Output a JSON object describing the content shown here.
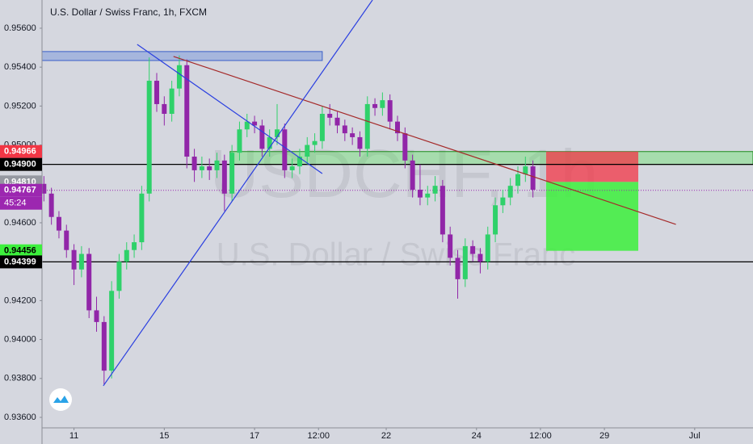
{
  "chart_data": {
    "type": "candlestick",
    "title": "U.S. Dollar / Swiss Franc, 1h, FXCM",
    "watermark_symbol": "USDCHF, 1h",
    "watermark_name": "U.S. Dollar / Swiss Franc",
    "up_color": "#2fd16a",
    "down_color": "#9126a8",
    "xlim": [
      0,
      378
    ],
    "ylim": [
      0.93546,
      0.95745
    ],
    "yticks": [
      {
        "value": 0.956,
        "label": "0.95600"
      },
      {
        "value": 0.954,
        "label": "0.95400"
      },
      {
        "value": 0.952,
        "label": "0.95200"
      },
      {
        "value": 0.95,
        "label": "0.95000"
      },
      {
        "value": 0.948,
        "label": "0.94800"
      },
      {
        "value": 0.946,
        "label": "0.94600"
      },
      {
        "value": 0.944,
        "label": "0.94400"
      },
      {
        "value": 0.942,
        "label": "0.94200"
      },
      {
        "value": 0.94,
        "label": "0.94000"
      },
      {
        "value": 0.938,
        "label": "0.93800"
      },
      {
        "value": 0.936,
        "label": "0.93600"
      }
    ],
    "xticks": [
      {
        "value": 17,
        "label": "11"
      },
      {
        "value": 65,
        "label": "15"
      },
      {
        "value": 113,
        "label": "17"
      },
      {
        "value": 147,
        "label": "12:00"
      },
      {
        "value": 183,
        "label": "22"
      },
      {
        "value": 231,
        "label": "24"
      },
      {
        "value": 265,
        "label": "12:00"
      },
      {
        "value": 299,
        "label": "29"
      },
      {
        "value": 347,
        "label": "Jul"
      }
    ],
    "x": [
      1,
      5,
      9,
      13,
      17,
      21,
      25,
      29,
      33,
      37,
      41,
      45,
      49,
      53,
      57,
      61,
      65,
      69,
      73,
      77,
      81,
      85,
      89,
      93,
      97,
      101,
      105,
      109,
      113,
      117,
      121,
      125,
      129,
      133,
      137,
      141,
      145,
      149,
      153,
      157,
      161,
      165,
      169,
      173,
      177,
      181,
      185,
      189,
      193,
      197,
      201,
      205,
      209,
      213,
      217,
      221,
      225,
      229,
      233,
      237,
      241,
      245,
      249,
      253,
      257,
      261
    ],
    "open": [
      0.948,
      0.9475,
      0.9463,
      0.9456,
      0.9446,
      0.9436,
      0.9444,
      0.9415,
      0.9409,
      0.9384,
      0.9425,
      0.944,
      0.9446,
      0.945,
      0.9475,
      0.9533,
      0.9521,
      0.9516,
      0.9529,
      0.9541,
      0.9494,
      0.9487,
      0.9489,
      0.9487,
      0.9492,
      0.9475,
      0.9496,
      0.9508,
      0.9512,
      0.951,
      0.9498,
      0.9504,
      0.9508,
      0.9487,
      0.9489,
      0.9494,
      0.95,
      0.9502,
      0.9516,
      0.9514,
      0.951,
      0.9506,
      0.9504,
      0.9498,
      0.9521,
      0.9519,
      0.9523,
      0.9512,
      0.9506,
      0.9492,
      0.9477,
      0.9473,
      0.9475,
      0.9479,
      0.9454,
      0.9442,
      0.9431,
      0.9448,
      0.9444,
      0.944,
      0.9454,
      0.9469,
      0.9473,
      0.9479,
      0.9485,
      0.9489
    ],
    "high": [
      0.9484,
      0.9478,
      0.9466,
      0.9459,
      0.9449,
      0.9448,
      0.9447,
      0.9422,
      0.9412,
      0.943,
      0.9444,
      0.945,
      0.9454,
      0.9479,
      0.9545,
      0.9537,
      0.9525,
      0.9533,
      0.9546,
      0.9544,
      0.9498,
      0.9494,
      0.9493,
      0.9496,
      0.9495,
      0.95,
      0.9512,
      0.9516,
      0.9515,
      0.9513,
      0.9508,
      0.9521,
      0.9511,
      0.9493,
      0.9498,
      0.9504,
      0.9506,
      0.952,
      0.9521,
      0.9517,
      0.9513,
      0.9509,
      0.9507,
      0.9525,
      0.9524,
      0.9527,
      0.9526,
      0.9515,
      0.9509,
      0.9495,
      0.949,
      0.9479,
      0.9484,
      0.9482,
      0.9458,
      0.9446,
      0.9452,
      0.9451,
      0.9447,
      0.9458,
      0.9473,
      0.9477,
      0.9483,
      0.9489,
      0.9494,
      0.9492
    ],
    "low": [
      0.9471,
      0.9459,
      0.9452,
      0.9442,
      0.9428,
      0.9432,
      0.9411,
      0.9404,
      0.9377,
      0.938,
      0.9421,
      0.9436,
      0.9442,
      0.9446,
      0.9471,
      0.9517,
      0.951,
      0.9512,
      0.9525,
      0.9488,
      0.9481,
      0.9483,
      0.9482,
      0.9483,
      0.9466,
      0.9471,
      0.9492,
      0.9504,
      0.9506,
      0.9494,
      0.9494,
      0.95,
      0.9483,
      0.9483,
      0.9485,
      0.949,
      0.9496,
      0.9498,
      0.951,
      0.9506,
      0.9502,
      0.95,
      0.9494,
      0.9494,
      0.9515,
      0.9515,
      0.9508,
      0.9502,
      0.9488,
      0.9473,
      0.9469,
      0.9469,
      0.9471,
      0.945,
      0.9438,
      0.9421,
      0.9427,
      0.944,
      0.9434,
      0.9436,
      0.945,
      0.9465,
      0.9469,
      0.9475,
      0.9481,
      0.9473
    ],
    "close": [
      0.9475,
      0.9463,
      0.9456,
      0.9446,
      0.9436,
      0.9444,
      0.9415,
      0.9409,
      0.9384,
      0.9425,
      0.944,
      0.9446,
      0.945,
      0.9475,
      0.9533,
      0.9521,
      0.9516,
      0.9529,
      0.9541,
      0.9494,
      0.9487,
      0.9489,
      0.9487,
      0.9492,
      0.9475,
      0.9496,
      0.9508,
      0.9512,
      0.951,
      0.9498,
      0.9504,
      0.9508,
      0.9487,
      0.9489,
      0.9494,
      0.95,
      0.9502,
      0.9516,
      0.9514,
      0.951,
      0.9506,
      0.9504,
      0.9498,
      0.9521,
      0.9519,
      0.9523,
      0.9512,
      0.9506,
      0.9492,
      0.9477,
      0.9473,
      0.9475,
      0.9479,
      0.9454,
      0.9442,
      0.9431,
      0.9448,
      0.9444,
      0.944,
      0.9454,
      0.9469,
      0.9473,
      0.9479,
      0.9485,
      0.9489,
      0.9477
    ],
    "levels": [
      {
        "value": 0.94966,
        "color": "#f23645",
        "line": "none"
      },
      {
        "value": 0.949,
        "label": "0.94900",
        "color": "#000000",
        "line": "solid"
      },
      {
        "value": 0.9481,
        "label": "0.94810",
        "color": "#9598a1",
        "line": "none"
      },
      {
        "value": 0.94767,
        "color": "#9c27b0",
        "line": "dotted"
      },
      {
        "value": 0.94456,
        "color": "#3cf03c",
        "line": "none"
      },
      {
        "value": 0.94399,
        "color": "#000000",
        "line": "solid"
      }
    ],
    "countdown": "45:24",
    "countdown_color": "#9c27b0",
    "zones": [
      {
        "top": 0.9548,
        "bottom": 0.95434,
        "x": [
          0,
          149
        ],
        "color": "rgba(120,150,220,0.5)",
        "stroke": "#3a5fc8"
      },
      {
        "top": 0.94966,
        "bottom": 0.949,
        "x": [
          100,
          378
        ],
        "color": "rgba(80,230,80,0.35)",
        "stroke": "#1b8a1b"
      }
    ],
    "position": {
      "stop": 0.94966,
      "entry": 0.9481,
      "target": 0.94456,
      "x": [
        268,
        317
      ],
      "stop_color": "rgba(242,54,69,0.75)",
      "target_color": "rgba(60,240,60,0.85)"
    },
    "trendlines": [
      {
        "points": [
          [
            69.9,
            0.95455
          ],
          [
            337,
            0.94592
          ]
        ],
        "color": "#a52a2a"
      },
      {
        "points": [
          [
            32.6,
            0.93762
          ],
          [
            175.7,
            0.95745
          ]
        ],
        "color": "#2a3fe0"
      },
      {
        "points": [
          [
            50.6,
            0.95517
          ],
          [
            149,
            0.94853
          ]
        ],
        "color": "#2a3fe0"
      }
    ]
  }
}
